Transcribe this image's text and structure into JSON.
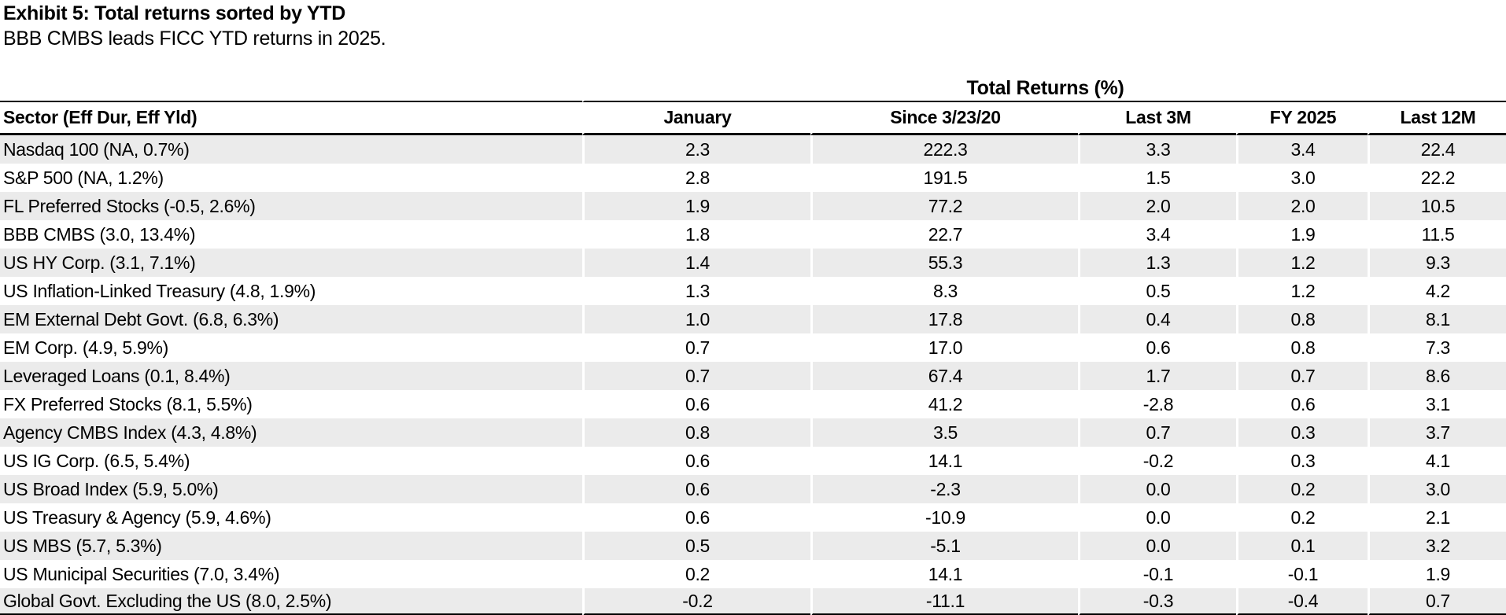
{
  "exhibit": {
    "title": "Exhibit 5: Total returns sorted by YTD",
    "subtitle": "BBB CMBS leads FICC YTD returns in 2025."
  },
  "colors": {
    "stripe": "#ebebeb",
    "rule": "#000000",
    "text": "#000000"
  },
  "chart_data": {
    "type": "table",
    "title": "Total Returns (%)",
    "columns": [
      "Sector (Eff Dur, Eff Yld)",
      "January",
      "Since 3/23/20",
      "Last 3M",
      "FY 2025",
      "Last 12M"
    ],
    "rows": [
      [
        "Nasdaq 100 (NA, 0.7%)",
        "2.3",
        "222.3",
        "3.3",
        "3.4",
        "22.4"
      ],
      [
        "S&P 500 (NA, 1.2%)",
        "2.8",
        "191.5",
        "1.5",
        "3.0",
        "22.2"
      ],
      [
        "FL Preferred Stocks (-0.5, 2.6%)",
        "1.9",
        "77.2",
        "2.0",
        "2.0",
        "10.5"
      ],
      [
        "BBB CMBS (3.0, 13.4%)",
        "1.8",
        "22.7",
        "3.4",
        "1.9",
        "11.5"
      ],
      [
        "US HY Corp. (3.1, 7.1%)",
        "1.4",
        "55.3",
        "1.3",
        "1.2",
        "9.3"
      ],
      [
        "US Inflation-Linked Treasury (4.8, 1.9%)",
        "1.3",
        "8.3",
        "0.5",
        "1.2",
        "4.2"
      ],
      [
        "EM External Debt Govt.  (6.8, 6.3%)",
        "1.0",
        "17.8",
        "0.4",
        "0.8",
        "8.1"
      ],
      [
        "EM Corp. (4.9, 5.9%)",
        "0.7",
        "17.0",
        "0.6",
        "0.8",
        "7.3"
      ],
      [
        "Leveraged Loans (0.1, 8.4%)",
        "0.7",
        "67.4",
        "1.7",
        "0.7",
        "8.6"
      ],
      [
        "FX Preferred Stocks (8.1, 5.5%)",
        "0.6",
        "41.2",
        "-2.8",
        "0.6",
        "3.1"
      ],
      [
        "Agency CMBS Index (4.3, 4.8%)",
        "0.8",
        "3.5",
        "0.7",
        "0.3",
        "3.7"
      ],
      [
        "US IG Corp. (6.5, 5.4%)",
        "0.6",
        "14.1",
        "-0.2",
        "0.3",
        "4.1"
      ],
      [
        "US Broad Index (5.9, 5.0%)",
        "0.6",
        "-2.3",
        "0.0",
        "0.2",
        "3.0"
      ],
      [
        "US Treasury & Agency (5.9, 4.6%)",
        "0.6",
        "-10.9",
        "0.0",
        "0.2",
        "2.1"
      ],
      [
        "US MBS (5.7, 5.3%)",
        "0.5",
        "-5.1",
        "0.0",
        "0.1",
        "3.2"
      ],
      [
        "US Municipal Securities (7.0, 3.4%)",
        "0.2",
        "14.1",
        "-0.1",
        "-0.1",
        "1.9"
      ],
      [
        "Global Govt. Excluding the US (8.0, 2.5%)",
        "-0.2",
        "-11.1",
        "-0.3",
        "-0.4",
        "0.7"
      ]
    ]
  }
}
